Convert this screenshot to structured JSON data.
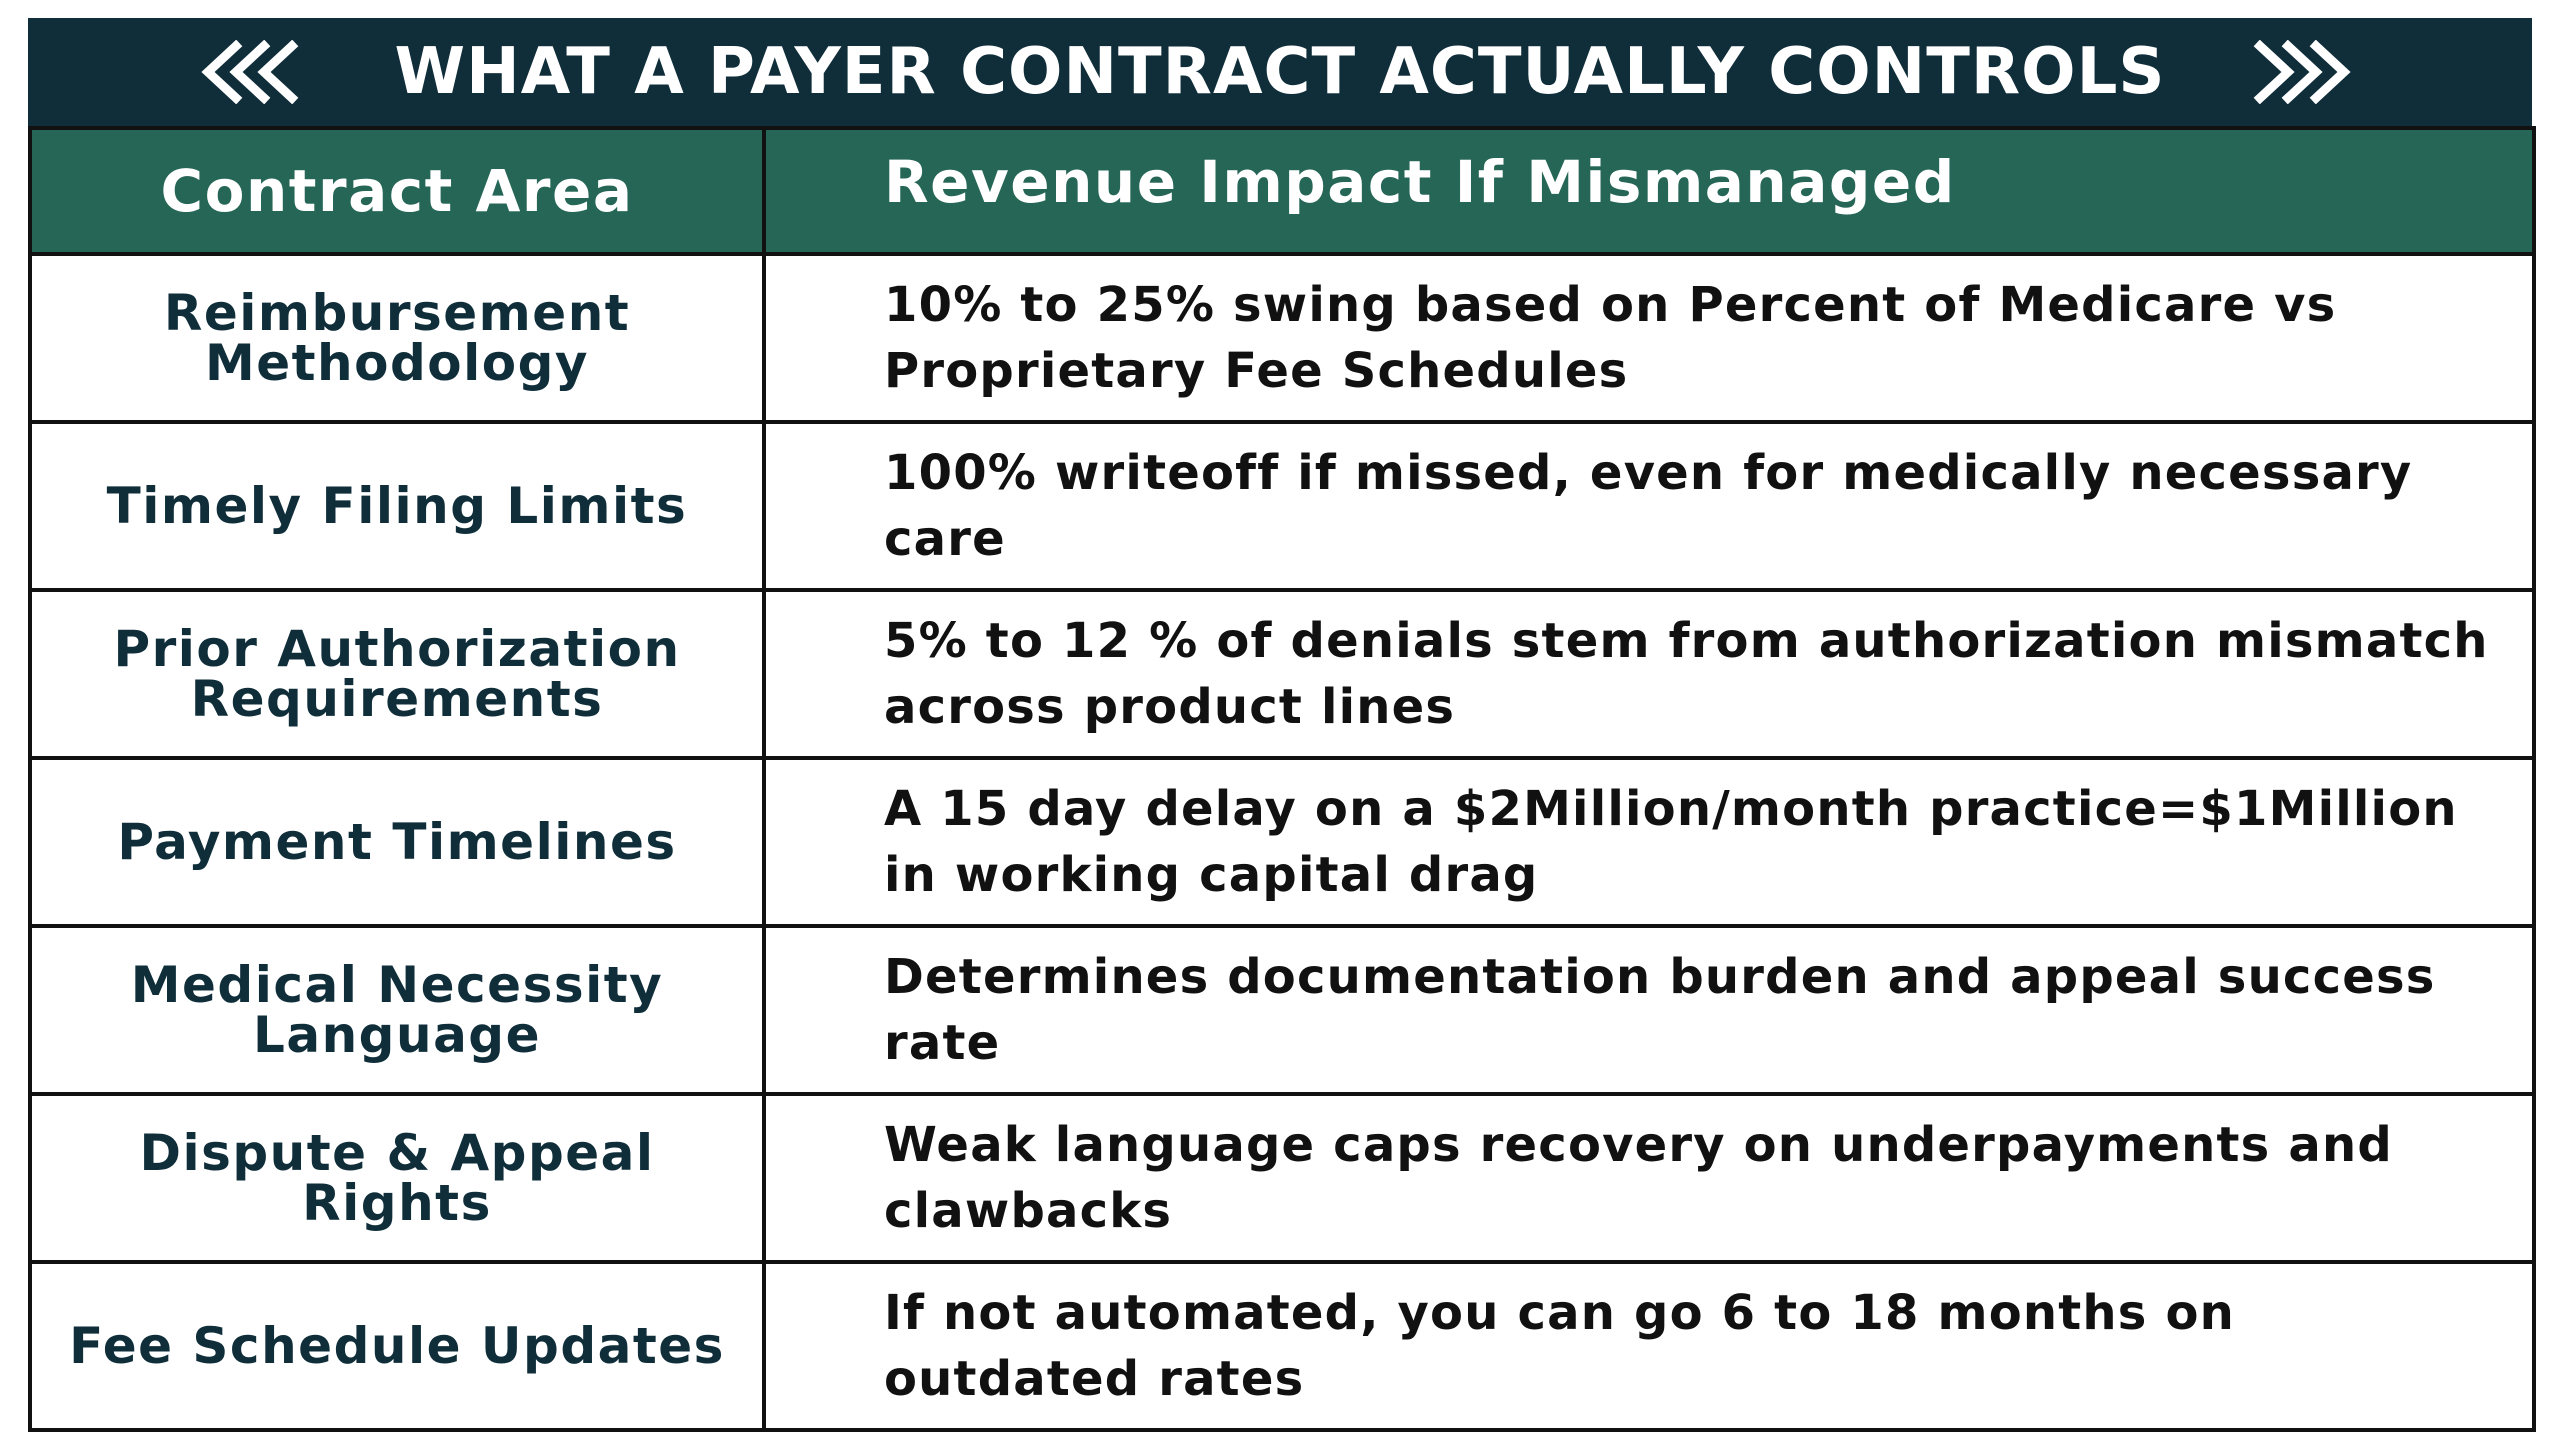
{
  "title": "WHAT A PAYER CONTRACT ACTUALLY CONTROLS",
  "header": {
    "col1": "Contract Area",
    "col2": "Revenue Impact If Mismanaged"
  },
  "rows": [
    {
      "area": "Reimbursement Methodology",
      "impact": "10% to 25% swing based on Percent of Medicare vs Proprietary Fee Schedules"
    },
    {
      "area": "Timely Filing Limits",
      "impact": "100% writeoff if missed, even for medically necessary care"
    },
    {
      "area": "Prior Authorization Requirements",
      "impact": "5% to 12 % of denials stem from authorization mismatch across product lines"
    },
    {
      "area": "Payment Timelines",
      "impact": "A 15 day delay on a $2Million/month practice=$1Million in working capital drag"
    },
    {
      "area": "Medical Necessity Language",
      "impact": "Determines documentation burden and appeal success rate"
    },
    {
      "area": "Dispute & Appeal Rights",
      "impact": "Weak language caps recovery on underpayments and clawbacks"
    },
    {
      "area": "Fee Schedule Updates",
      "impact": "If not automated, you can go 6 to 18 months on outdated rates"
    }
  ],
  "colors": {
    "title_bg": "#0f2e3a",
    "header_bg": "#256656",
    "border": "#111111"
  },
  "icons": {
    "left": "chevrons-left-icon",
    "right": "chevrons-right-icon"
  }
}
